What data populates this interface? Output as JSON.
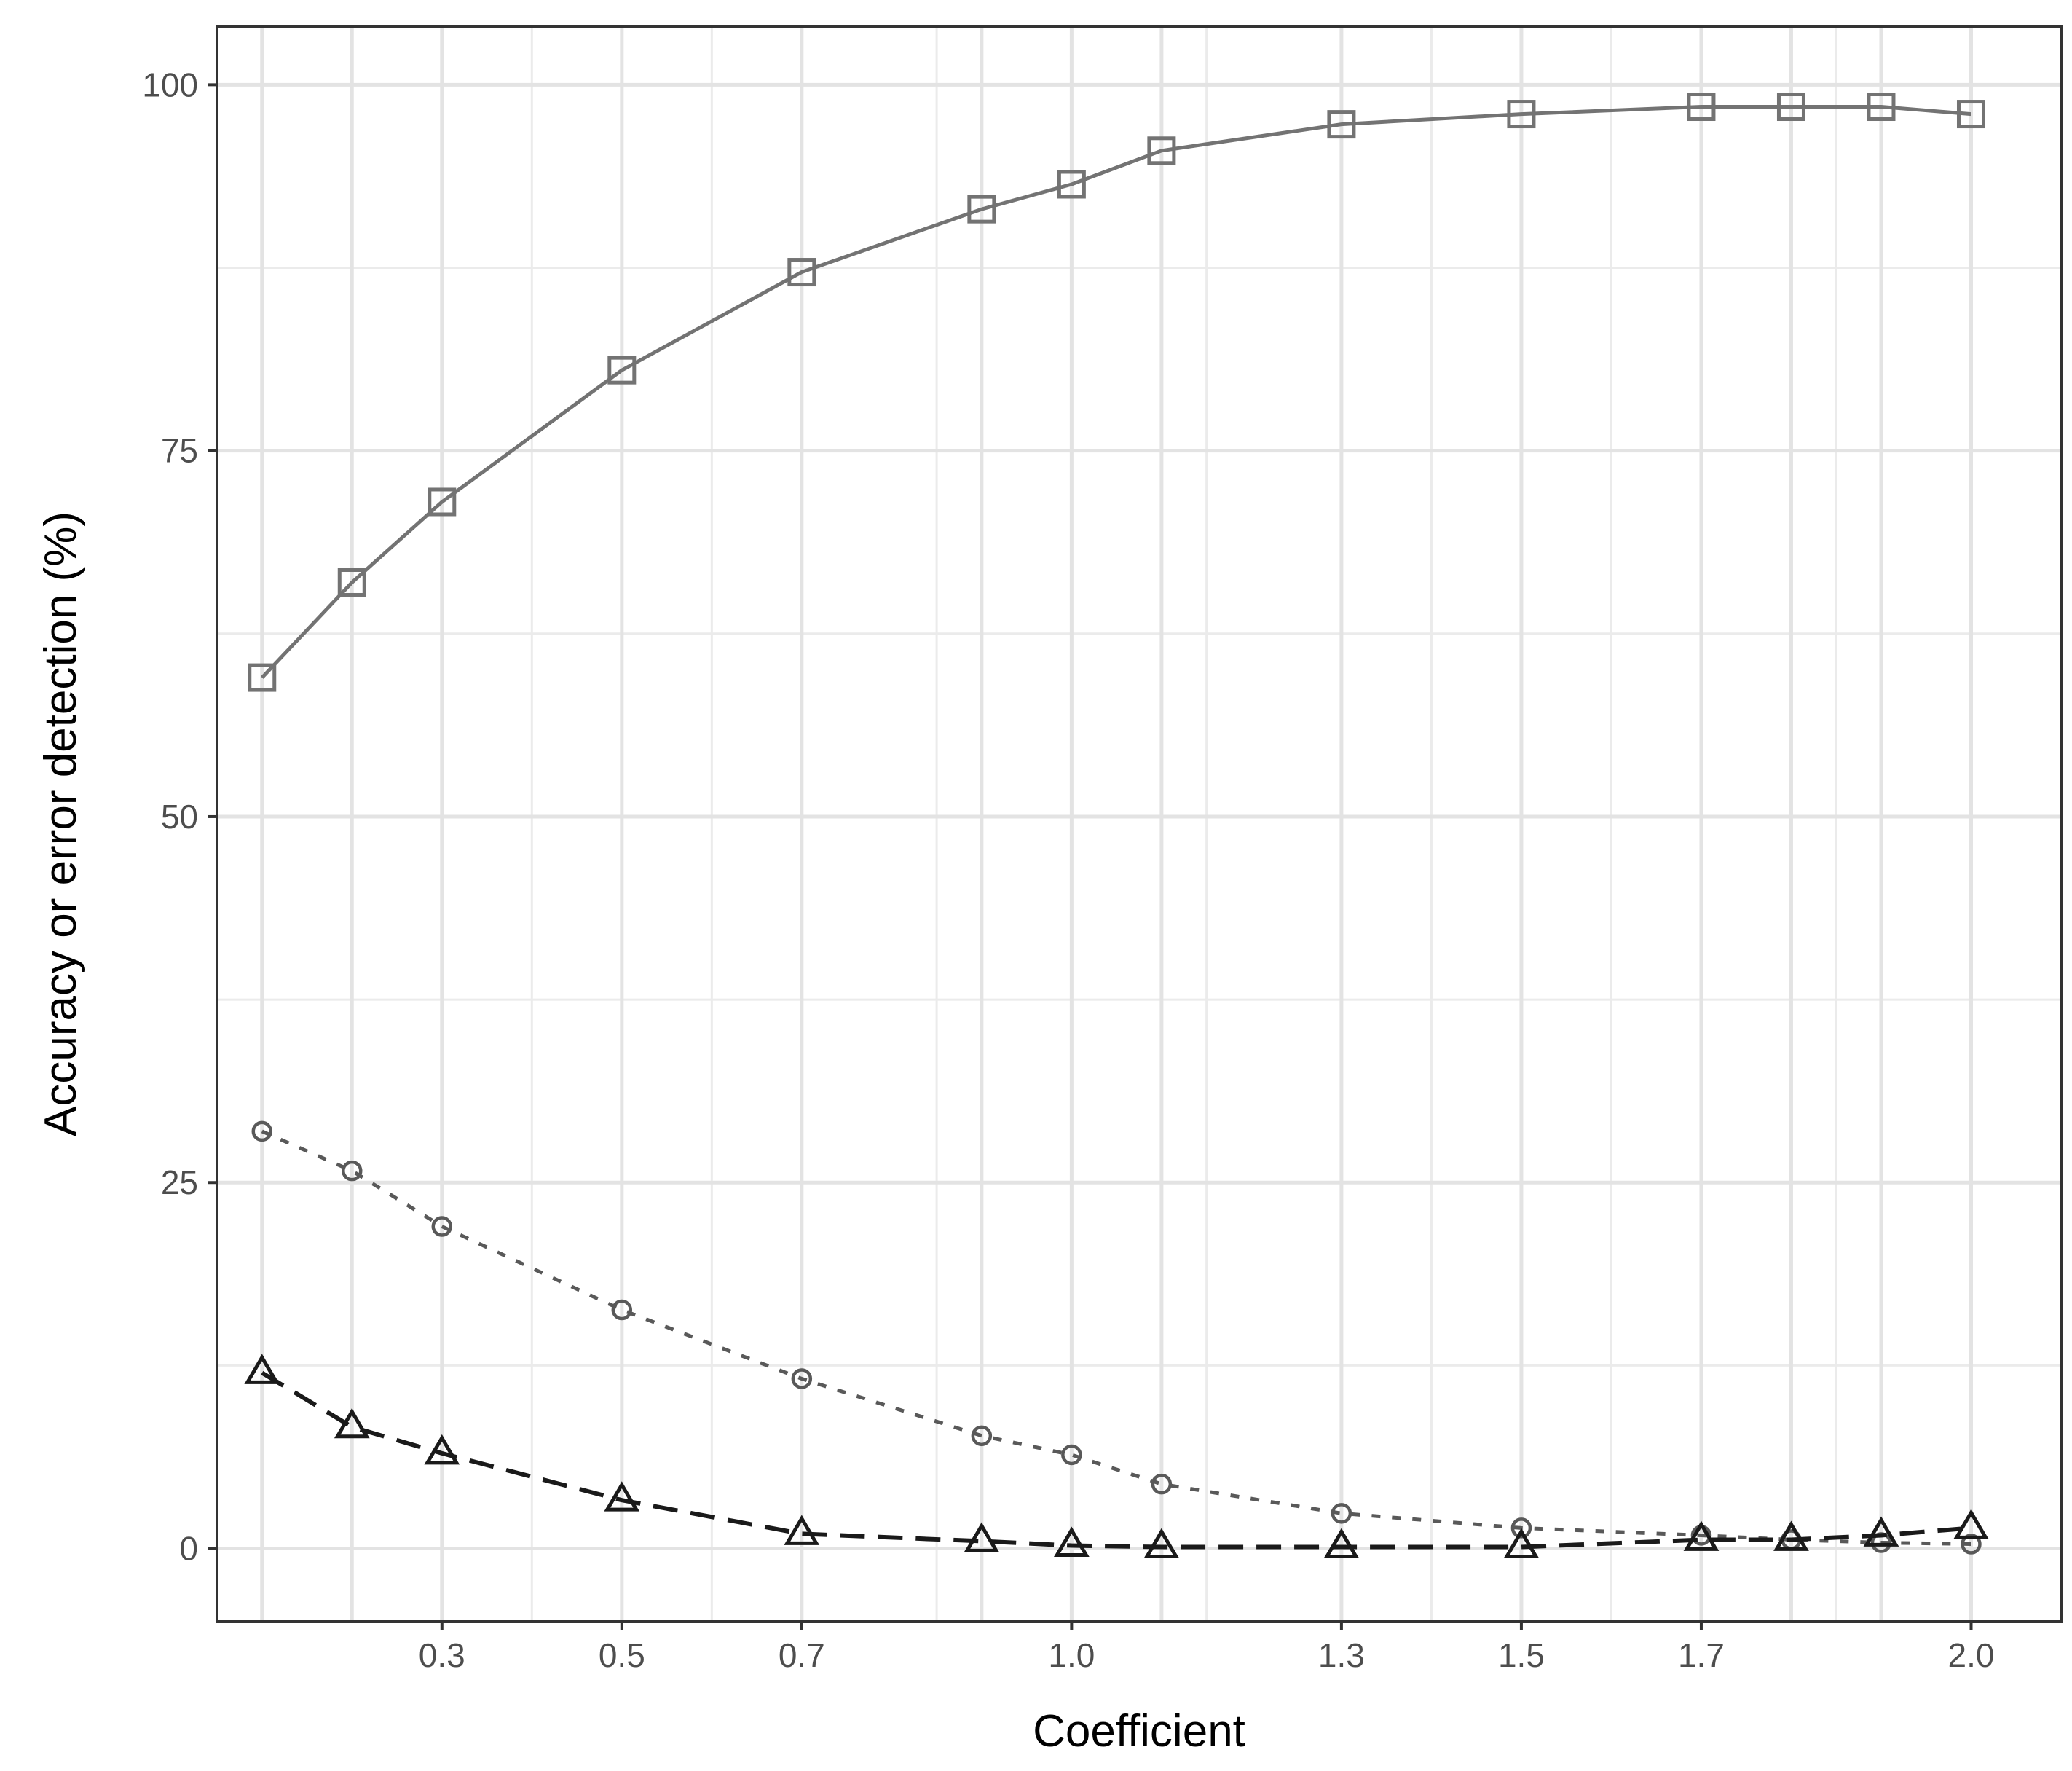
{
  "chart_data": {
    "type": "line",
    "title": "",
    "xlabel": "Coefficient",
    "ylabel": "Accuracy or error detection (%)",
    "xlim": [
      0.05,
      2.1
    ],
    "ylim": [
      -5,
      104
    ],
    "x_ticks": [
      0.3,
      0.5,
      0.7,
      1.0,
      1.3,
      1.5,
      1.7,
      2.0
    ],
    "x_tick_labels": [
      "0.3",
      "0.5",
      "0.7",
      "1.0",
      "1.3",
      "1.5",
      "1.7",
      "2.0"
    ],
    "y_ticks": [
      0,
      25,
      50,
      75,
      100
    ],
    "y_tick_labels": [
      "0",
      "25",
      "50",
      "75",
      "100"
    ],
    "x_minor_grid": [
      0.4,
      0.6,
      0.85,
      1.15,
      1.4,
      1.6,
      1.85
    ],
    "y_minor_grid": [
      12.5,
      37.5,
      62.5,
      87.5
    ],
    "grid": true,
    "legend": "none",
    "x": [
      0.1,
      0.2,
      0.3,
      0.5,
      0.7,
      0.9,
      1.0,
      1.1,
      1.3,
      1.5,
      1.7,
      1.8,
      1.9,
      2.0
    ],
    "series": [
      {
        "marker": "square",
        "line": "solid",
        "color": "#737373",
        "values": [
          59.5,
          66.0,
          71.5,
          80.5,
          87.2,
          91.5,
          93.2,
          95.5,
          97.3,
          98.0,
          98.5,
          98.5,
          98.5,
          98.0
        ]
      },
      {
        "marker": "circle",
        "line": "dotted",
        "color": "#595959",
        "values": [
          28.5,
          25.8,
          22.0,
          16.3,
          11.6,
          7.7,
          6.4,
          4.4,
          2.4,
          1.4,
          0.9,
          0.6,
          0.4,
          0.3
        ]
      },
      {
        "marker": "triangle",
        "line": "dashed",
        "color": "#1a1a1a",
        "values": [
          12.0,
          8.3,
          6.5,
          3.3,
          1.0,
          0.5,
          0.2,
          0.1,
          0.1,
          0.1,
          0.6,
          0.6,
          0.9,
          1.4
        ]
      }
    ]
  }
}
